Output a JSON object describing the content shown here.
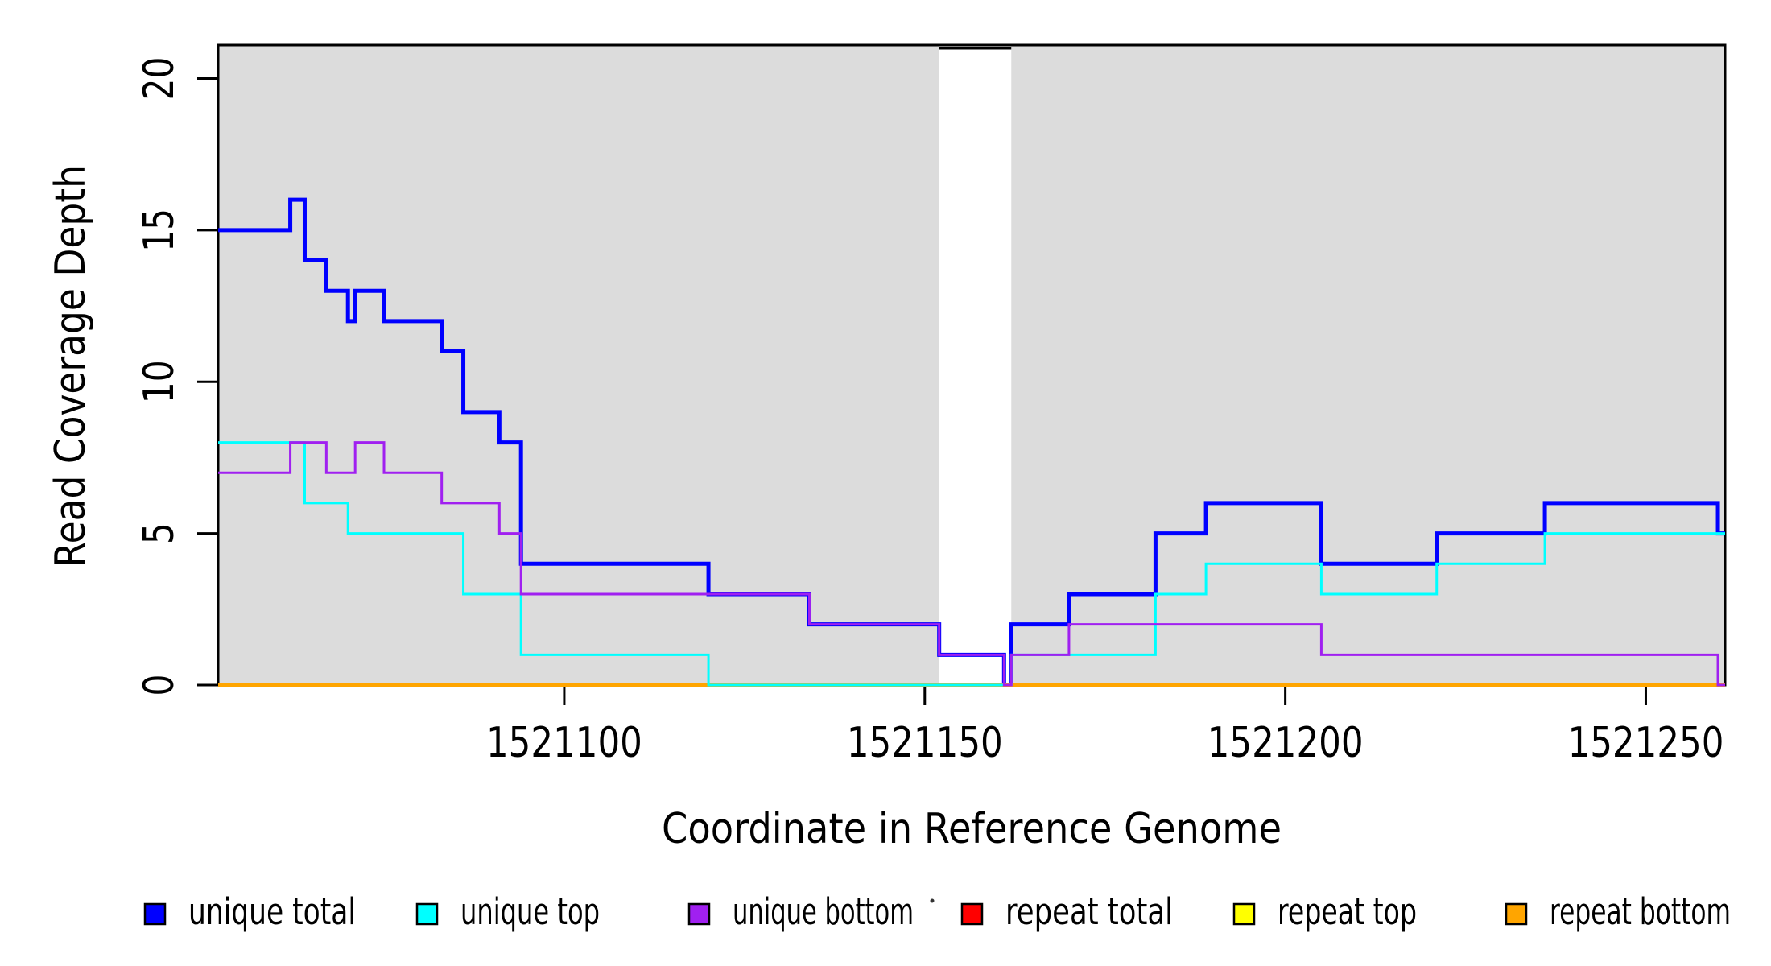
{
  "chart_data": {
    "type": "line",
    "line_style": "step",
    "title": "",
    "xlabel": "Coordinate in Reference Genome",
    "ylabel": "Read Coverage Depth",
    "xlim": [
      1521052,
      1521261
    ],
    "ylim": [
      0,
      21.1
    ],
    "x_ticks": [
      1521100,
      1521150,
      1521200,
      1521250
    ],
    "y_ticks": [
      0,
      5,
      10,
      15,
      20
    ],
    "grid": false,
    "plot_background": "#dcdcdc",
    "unshaded_gap_region": [
      1521152,
      1521162
    ],
    "series": [
      {
        "name": "unique total",
        "color": "#0000ff",
        "lwd": 5,
        "steps": [
          [
            1521052,
            15
          ],
          [
            1521062,
            16
          ],
          [
            1521064,
            14
          ],
          [
            1521067,
            13
          ],
          [
            1521070,
            12
          ],
          [
            1521071,
            13
          ],
          [
            1521075,
            12
          ],
          [
            1521083,
            11
          ],
          [
            1521086,
            9
          ],
          [
            1521091,
            8
          ],
          [
            1521094,
            4
          ],
          [
            1521120,
            3
          ],
          [
            1521134,
            2
          ],
          [
            1521152,
            1
          ],
          [
            1521161,
            0
          ],
          [
            1521162,
            2
          ],
          [
            1521170,
            3
          ],
          [
            1521182,
            5
          ],
          [
            1521189,
            6
          ],
          [
            1521205,
            4
          ],
          [
            1521221,
            5
          ],
          [
            1521236,
            6
          ],
          [
            1521260,
            5
          ]
        ]
      },
      {
        "name": "unique top",
        "color": "#00ffff",
        "lwd": 3,
        "steps": [
          [
            1521052,
            8
          ],
          [
            1521064,
            6
          ],
          [
            1521070,
            5
          ],
          [
            1521086,
            3
          ],
          [
            1521094,
            1
          ],
          [
            1521120,
            0
          ],
          [
            1521162,
            1
          ],
          [
            1521182,
            3
          ],
          [
            1521189,
            4
          ],
          [
            1521205,
            3
          ],
          [
            1521221,
            4
          ],
          [
            1521236,
            5
          ]
        ]
      },
      {
        "name": "unique bottom",
        "color": "#a020f0",
        "lwd": 3,
        "steps": [
          [
            1521052,
            7
          ],
          [
            1521062,
            8
          ],
          [
            1521067,
            7
          ],
          [
            1521071,
            8
          ],
          [
            1521075,
            7
          ],
          [
            1521083,
            6
          ],
          [
            1521091,
            5
          ],
          [
            1521094,
            3
          ],
          [
            1521134,
            2
          ],
          [
            1521152,
            1
          ],
          [
            1521161,
            0
          ],
          [
            1521162,
            1
          ],
          [
            1521170,
            2
          ],
          [
            1521205,
            1
          ],
          [
            1521260,
            0
          ]
        ]
      },
      {
        "name": "repeat total",
        "color": "#ff0000",
        "lwd": 3,
        "steps": [
          [
            1521052,
            0
          ]
        ]
      },
      {
        "name": "repeat top",
        "color": "#ffff00",
        "lwd": 3,
        "steps": [
          [
            1521052,
            0
          ]
        ]
      },
      {
        "name": "repeat bottom",
        "color": "#ffa500",
        "lwd": 4.5,
        "steps": [
          [
            1521052,
            0
          ]
        ]
      }
    ],
    "draw_order": [
      0,
      3,
      4,
      5,
      1,
      2
    ],
    "legend": {
      "position": "bottom",
      "items": [
        {
          "label": "unique total",
          "color": "#0000ff"
        },
        {
          "label": "unique top",
          "color": "#00ffff"
        },
        {
          "label": "unique bottom",
          "color": "#a020f0"
        },
        {
          "label": "repeat total",
          "color": "#ff0000"
        },
        {
          "label": "repeat top",
          "color": "#ffff00"
        },
        {
          "label": "repeat bottom",
          "color": "#ffa500"
        }
      ]
    }
  }
}
